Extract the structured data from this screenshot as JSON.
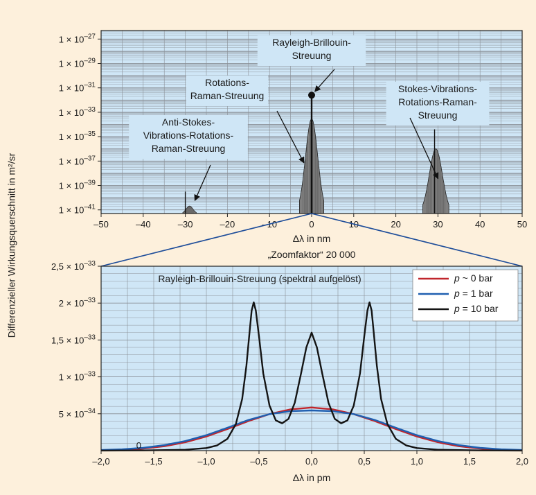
{
  "y_axis_label": "Differenzieller Wirkungsquerschnitt in m²/sr",
  "zoom_label": "„Zoomfaktor“ 20 000",
  "colors": {
    "background": "#fdf0dc",
    "plot_bg": "#cfe6f6",
    "grid": "#8a8f96",
    "spectrum_fill": "#7f7f7f",
    "p0": "#c0262c",
    "p1": "#1f5fb0",
    "p10": "#141414"
  },
  "chart_data": [
    {
      "type": "area",
      "id": "overview",
      "xlabel": "Δλ in nm",
      "xlim": [
        -50,
        50
      ],
      "ylim_exponent": [
        -41.3,
        -26.3
      ],
      "y_scale": "log",
      "grid": true,
      "x_ticks": [
        -50,
        -40,
        -30,
        -20,
        -10,
        0,
        10,
        20,
        30,
        40,
        50
      ],
      "x_tick_labels": [
        "–50",
        "–40",
        "–30",
        "–20",
        "–10",
        "0",
        "10",
        "20",
        "30",
        "40",
        "50"
      ],
      "y_ticks_exponent": [
        -27,
        -29,
        -31,
        -33,
        -35,
        -37,
        -39,
        -41
      ],
      "y_tick_labels": [
        {
          "mant": "1 × 10",
          "exp": "–27"
        },
        {
          "mant": "1 × 10",
          "exp": "–29"
        },
        {
          "mant": "1 × 10",
          "exp": "–31"
        },
        {
          "mant": "1 × 10",
          "exp": "–33"
        },
        {
          "mant": "1 × 10",
          "exp": "–35"
        },
        {
          "mant": "1 × 10",
          "exp": "–37"
        },
        {
          "mant": "1 × 10",
          "exp": "–39"
        },
        {
          "mant": "1 × 10",
          "exp": "–41"
        }
      ],
      "bands": [
        {
          "name": "anti-stokes",
          "center": -29,
          "width": 3.2,
          "peak_exp": -40.7,
          "spike_x": -30,
          "spike_exp": -39.5
        },
        {
          "name": "rotational",
          "center": 0,
          "width": 5.8,
          "peak_exp": -33.7
        },
        {
          "name": "stokes",
          "center": 29.5,
          "width": 6.2,
          "peak_exp": -36.1,
          "spike_x": 29.2,
          "spike_exp": -34.4
        }
      ],
      "rayleigh_line": {
        "x": 0,
        "top_exp": -31.6
      },
      "annotations": [
        {
          "lines": [
            "Rayleigh-Brillouin-",
            "Streuung"
          ],
          "target": [
            0,
            -31.6
          ]
        },
        {
          "lines": [
            "Rotations-",
            "Raman-Streuung"
          ],
          "target": [
            -1.3,
            -37.5
          ]
        },
        {
          "lines": [
            "Stokes-Vibrations-",
            "Rotations-Raman-",
            "Streuung"
          ],
          "target": [
            30.5,
            -38.8
          ]
        },
        {
          "lines": [
            "Anti-Stokes-",
            "Vibrations-Rotations-",
            "Raman-Streuung"
          ],
          "target": [
            -28.2,
            -40.6
          ]
        }
      ]
    },
    {
      "type": "line",
      "id": "zoom",
      "xlabel": "Δλ in pm",
      "xlim": [
        -2.0,
        2.0
      ],
      "ylim": [
        0,
        2.5e-33
      ],
      "grid": true,
      "x_ticks": [
        -2.0,
        -1.5,
        -1.0,
        -0.5,
        0.0,
        0.5,
        1.0,
        1.5,
        2.0
      ],
      "x_tick_labels": [
        "–2,0",
        "–1,5",
        "–1,0",
        "–0,5",
        "0,0",
        "0,5",
        "1,0",
        "1,5",
        "2,0"
      ],
      "y_ticks": [
        0,
        5e-34,
        1e-33,
        1.5e-33,
        2e-33,
        2.5e-33
      ],
      "y_tick_labels": [
        {
          "mant": "0",
          "exp": ""
        },
        {
          "mant": "5 × 10",
          "exp": "–34"
        },
        {
          "mant": "1 × 10",
          "exp": "–33"
        },
        {
          "mant": "1,5 × 10",
          "exp": "–33"
        },
        {
          "mant": "2 × 10",
          "exp": "–33"
        },
        {
          "mant": "2,5 × 10",
          "exp": "–33"
        }
      ],
      "title": "Rayleigh-Brillouin-Streuung (spektral aufgelöst)",
      "legend_position": "top-right",
      "series": [
        {
          "name": "p ~ 0 bar",
          "p_label": "p",
          "rest": " ~ 0 bar",
          "color": "#c0262c",
          "x": [
            -2.0,
            -1.8,
            -1.6,
            -1.4,
            -1.2,
            -1.0,
            -0.8,
            -0.6,
            -0.4,
            -0.2,
            0.0,
            0.2,
            0.4,
            0.6,
            0.8,
            1.0,
            1.2,
            1.4,
            1.6,
            1.8,
            2.0
          ],
          "values": [
            4e-36,
            1.1e-35,
            2.7e-35,
            5.9e-35,
            1.13e-34,
            1.92e-34,
            2.92e-34,
            4e-34,
            4.95e-34,
            5.6e-34,
            5.85e-34,
            5.6e-34,
            4.95e-34,
            4e-34,
            2.92e-34,
            1.92e-34,
            1.13e-34,
            5.9e-35,
            2.7e-35,
            1.1e-35,
            4e-36
          ]
        },
        {
          "name": "p = 1 bar",
          "p_label": "p",
          "rest": " = 1 bar",
          "color": "#1f5fb0",
          "x": [
            -2.0,
            -1.8,
            -1.6,
            -1.4,
            -1.2,
            -1.0,
            -0.8,
            -0.6,
            -0.4,
            -0.2,
            0.0,
            0.2,
            0.4,
            0.6,
            0.8,
            1.0,
            1.2,
            1.4,
            1.6,
            1.8,
            2.0
          ],
          "values": [
            8e-36,
            1.8e-35,
            3.8e-35,
            7.4e-35,
            1.3e-34,
            2.1e-34,
            3.1e-34,
            4.15e-34,
            4.95e-34,
            5.35e-34,
            5.45e-34,
            5.35e-34,
            4.95e-34,
            4.15e-34,
            3.1e-34,
            2.1e-34,
            1.3e-34,
            7.4e-35,
            3.8e-35,
            1.8e-35,
            8e-36
          ]
        },
        {
          "name": "p = 10 bar",
          "p_label": "p",
          "rest": " = 10 bar",
          "color": "#141414",
          "x": [
            -2.0,
            -1.6,
            -1.2,
            -1.0,
            -0.9,
            -0.8,
            -0.72,
            -0.66,
            -0.62,
            -0.59,
            -0.57,
            -0.55,
            -0.53,
            -0.5,
            -0.46,
            -0.4,
            -0.34,
            -0.28,
            -0.22,
            -0.16,
            -0.1,
            -0.05,
            0.0,
            0.05,
            0.1,
            0.16,
            0.22,
            0.28,
            0.34,
            0.4,
            0.46,
            0.5,
            0.53,
            0.55,
            0.57,
            0.59,
            0.62,
            0.66,
            0.72,
            0.8,
            0.9,
            1.0,
            1.2,
            1.6,
            2.0
          ],
          "values": [
            5e-37,
            3e-36,
            1.2e-35,
            3.5e-35,
            7e-35,
            1.6e-34,
            3.6e-34,
            7e-34,
            1.15e-33,
            1.6e-33,
            1.9e-33,
            2.01e-33,
            1.9e-33,
            1.55e-33,
            1.05e-33,
            6.1e-34,
            4.1e-34,
            3.7e-34,
            4.3e-34,
            6.5e-34,
            1.05e-33,
            1.4e-33,
            1.6e-33,
            1.4e-33,
            1.05e-33,
            6.5e-34,
            4.3e-34,
            3.7e-34,
            4.1e-34,
            6.1e-34,
            1.05e-33,
            1.55e-33,
            1.9e-33,
            2.01e-33,
            1.9e-33,
            1.6e-33,
            1.15e-33,
            7e-34,
            3.6e-34,
            1.6e-34,
            7e-35,
            3.5e-35,
            1.2e-35,
            3e-36,
            5e-37
          ]
        }
      ]
    }
  ]
}
